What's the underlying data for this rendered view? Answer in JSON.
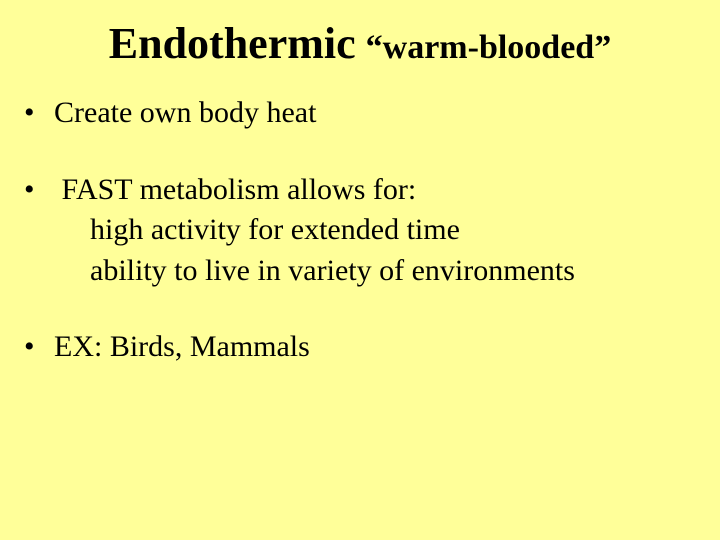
{
  "background_color": "#ffff99",
  "text_color": "#000000",
  "font_family": "Times New Roman",
  "title": {
    "main": "Endothermic",
    "sub": "“warm-blooded”",
    "main_fontsize": 44,
    "sub_fontsize": 34,
    "fontweight": "bold"
  },
  "body_fontsize": 30,
  "bullets": [
    {
      "marker": "•",
      "text": "Create own body heat",
      "subs": []
    },
    {
      "marker": "•",
      "text": " FAST metabolism allows for:",
      "subs": [
        "high activity for extended time",
        "ability to live in variety of environments"
      ]
    },
    {
      "marker": "•",
      "text": "EX: Birds, Mammals",
      "subs": []
    }
  ]
}
